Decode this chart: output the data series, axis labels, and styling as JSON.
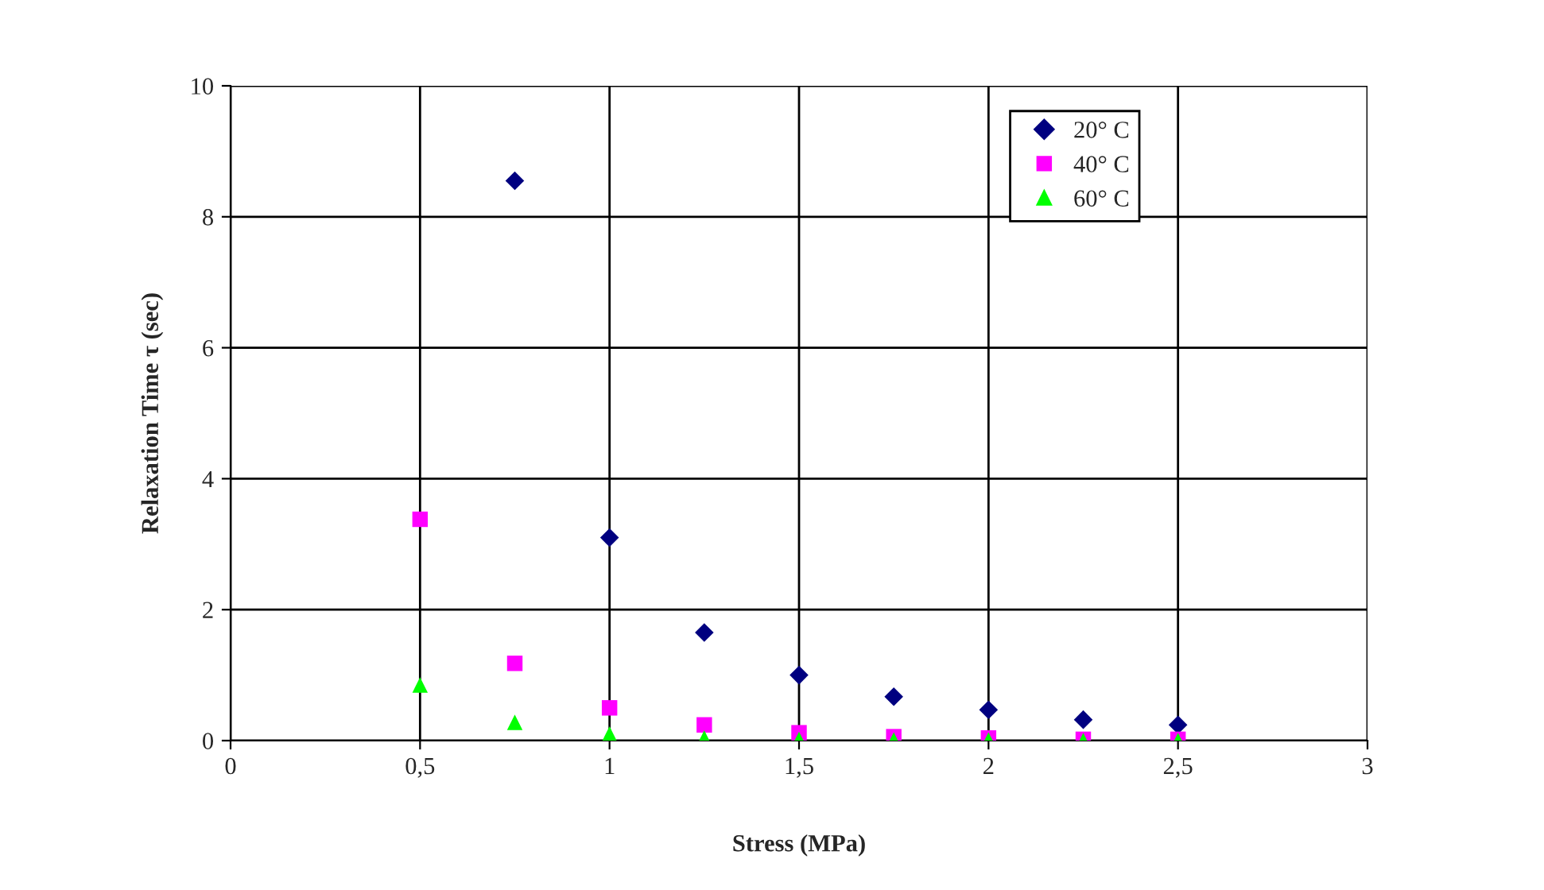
{
  "chart_data": {
    "type": "scatter",
    "xlabel": "Stress (MPa)",
    "ylabel": "Relaxation Time τ (sec)",
    "xlim": [
      0,
      3
    ],
    "xticks": [
      0,
      {
        "value": 0.5,
        "label": "0,5"
      },
      1,
      {
        "value": 1.5,
        "label": "1,5"
      },
      2,
      {
        "value": 2.5,
        "label": "2,5"
      },
      3
    ],
    "ylim": [
      0,
      10
    ],
    "yticks": [
      0,
      2,
      4,
      6,
      8,
      10
    ],
    "grid": true,
    "legend": "top right",
    "series": [
      {
        "name": "20° C",
        "color": "#000080",
        "marker": "diamond",
        "x": [
          0.75,
          1,
          1.25,
          1.5,
          1.75,
          2,
          2.25,
          2.5
        ],
        "values": [
          8.55,
          3.1,
          1.65,
          1.0,
          0.67,
          0.47,
          0.32,
          0.24
        ]
      },
      {
        "name": "40° C",
        "color": "#ff00ff",
        "marker": "square",
        "x": [
          0.5,
          0.75,
          1,
          1.25,
          1.5,
          1.75,
          2,
          2.25,
          2.5
        ],
        "values": [
          3.38,
          1.18,
          0.5,
          0.24,
          0.12,
          0.06,
          0.04,
          0.02,
          0.02
        ]
      },
      {
        "name": "60° C",
        "color": "#00ff00",
        "marker": "triangle",
        "x": [
          0.5,
          0.75,
          1,
          1.25,
          1.5,
          1.75,
          2,
          2.25,
          2.5
        ],
        "values": [
          0.85,
          0.28,
          0.1,
          0.04,
          0.02,
          0.01,
          0.01,
          0.0,
          0.0
        ]
      }
    ]
  }
}
